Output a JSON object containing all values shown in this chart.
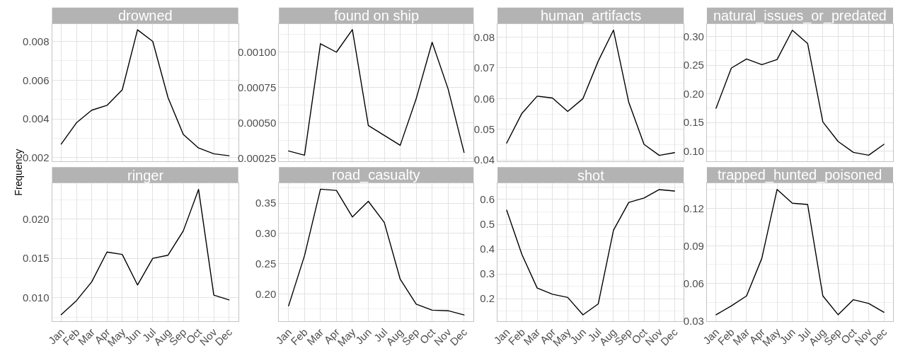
{
  "chart_data": [
    {
      "type": "line",
      "title": "drowned",
      "ylabel": "Frequency",
      "categories": [
        "Jan",
        "Feb",
        "Mar",
        "Apr",
        "May",
        "Jun",
        "Jul",
        "Aug",
        "Sep",
        "Oct",
        "Nov",
        "Dec"
      ],
      "values": [
        0.0027,
        0.0038,
        0.00445,
        0.0047,
        0.0055,
        0.0086,
        0.008,
        0.0051,
        0.0032,
        0.0025,
        0.0022,
        0.0021
      ],
      "color": "#000000",
      "ylim": [
        0.0018,
        0.0089
      ],
      "yticks": [
        0.002,
        0.004,
        0.006,
        0.008
      ],
      "grid": true,
      "tick_labels": "y"
    },
    {
      "type": "line",
      "title": "found on ship",
      "categories": [
        "Jan",
        "Feb",
        "Mar",
        "Apr",
        "May",
        "Jun",
        "Jul",
        "Aug",
        "Sep",
        "Oct",
        "Nov",
        "Dec"
      ],
      "values": [
        0.0003,
        0.00027,
        0.00106,
        0.001,
        0.00116,
        0.00048,
        0.00041,
        0.00034,
        0.00067,
        0.00107,
        0.00074,
        0.00029
      ],
      "color": "#000000",
      "ylim": [
        0.000225,
        0.0012
      ],
      "yticks": [
        0.00025,
        {
          "value": 0.0005,
          "label": "0.00050"
        },
        0.00075,
        {
          "value": 0.001,
          "label": "0.00100"
        }
      ],
      "grid": true,
      "tick_labels": "y"
    },
    {
      "type": "line",
      "title": "human_artifacts",
      "categories": [
        "Jan",
        "Feb",
        "Mar",
        "Apr",
        "May",
        "Jun",
        "Jul",
        "Aug",
        "Sep",
        "Oct",
        "Nov",
        "Dec"
      ],
      "values": [
        0.0455,
        0.0552,
        0.0608,
        0.0602,
        0.0558,
        0.06,
        0.0722,
        0.0823,
        0.0588,
        0.0451,
        0.0415,
        0.0424
      ],
      "color": "#000000",
      "ylim": [
        0.0395,
        0.0843
      ],
      "yticks": [
        0.04,
        0.05,
        0.06,
        0.07,
        0.08
      ],
      "grid": true,
      "tick_labels": "y"
    },
    {
      "type": "line",
      "title": "natural_issues_or_predated",
      "categories": [
        "Jan",
        "Feb",
        "Mar",
        "Apr",
        "May",
        "Jun",
        "Jul",
        "Aug",
        "Sep",
        "Oct",
        "Nov",
        "Dec"
      ],
      "values": [
        0.175,
        0.245,
        0.261,
        0.251,
        0.26,
        0.311,
        0.288,
        0.151,
        0.117,
        0.098,
        0.093,
        0.112
      ],
      "color": "#000000",
      "ylim": [
        0.082,
        0.322
      ],
      "yticks": [
        {
          "value": 0.1,
          "label": "0.10"
        },
        0.15,
        {
          "value": 0.2,
          "label": "0.20"
        },
        0.25,
        {
          "value": 0.3,
          "label": "0.30"
        }
      ],
      "grid": true,
      "tick_labels": "y"
    },
    {
      "type": "line",
      "title": "ringer",
      "categories": [
        "Jan",
        "Feb",
        "Mar",
        "Apr",
        "May",
        "Jun",
        "Jul",
        "Aug",
        "Sep",
        "Oct",
        "Nov",
        "Dec"
      ],
      "values": [
        0.0078,
        0.0096,
        0.012,
        0.0158,
        0.0155,
        0.0116,
        0.015,
        0.0154,
        0.0185,
        0.0238,
        0.0103,
        0.0097
      ],
      "color": "#000000",
      "ylim": [
        0.007,
        0.0246
      ],
      "yticks": [
        {
          "value": 0.01,
          "label": "0.010"
        },
        0.015,
        {
          "value": 0.02,
          "label": "0.020"
        }
      ],
      "grid": true
    },
    {
      "type": "line",
      "title": "road_casualty",
      "categories": [
        "Jan",
        "Feb",
        "Mar",
        "Apr",
        "May",
        "Jun",
        "Jul",
        "Aug",
        "Sep",
        "Oct",
        "Nov",
        "Dec"
      ],
      "values": [
        0.18,
        0.263,
        0.373,
        0.371,
        0.327,
        0.353,
        0.318,
        0.224,
        0.183,
        0.173,
        0.172,
        0.165
      ],
      "color": "#000000",
      "ylim": [
        0.155,
        0.383
      ],
      "yticks": [
        {
          "value": 0.2,
          "label": "0.20"
        },
        0.25,
        {
          "value": 0.3,
          "label": "0.30"
        },
        0.35
      ],
      "grid": true
    },
    {
      "type": "line",
      "title": "shot",
      "categories": [
        "Jan",
        "Feb",
        "Mar",
        "Apr",
        "May",
        "Jun",
        "Jul",
        "Aug",
        "Sep",
        "Oct",
        "Nov",
        "Dec"
      ],
      "values": [
        0.557,
        0.378,
        0.243,
        0.218,
        0.205,
        0.135,
        0.179,
        0.476,
        0.588,
        0.606,
        0.64,
        0.634
      ],
      "color": "#000000",
      "ylim": [
        0.11,
        0.666
      ],
      "yticks": [
        0.2,
        0.3,
        0.4,
        0.5,
        0.6
      ],
      "grid": true
    },
    {
      "type": "line",
      "title": "trapped_hunted_poisoned",
      "categories": [
        "Jan",
        "Feb",
        "Mar",
        "Apr",
        "May",
        "Jun",
        "Jul",
        "Aug",
        "Sep",
        "Oct",
        "Nov",
        "Dec"
      ],
      "values": [
        0.035,
        0.042,
        0.05,
        0.08,
        0.135,
        0.124,
        0.123,
        0.05,
        0.035,
        0.047,
        0.044,
        0.037
      ],
      "color": "#000000",
      "ylim": [
        0.03,
        0.14
      ],
      "yticks": [
        0.03,
        0.06,
        0.09,
        0.12
      ],
      "grid": true
    }
  ]
}
